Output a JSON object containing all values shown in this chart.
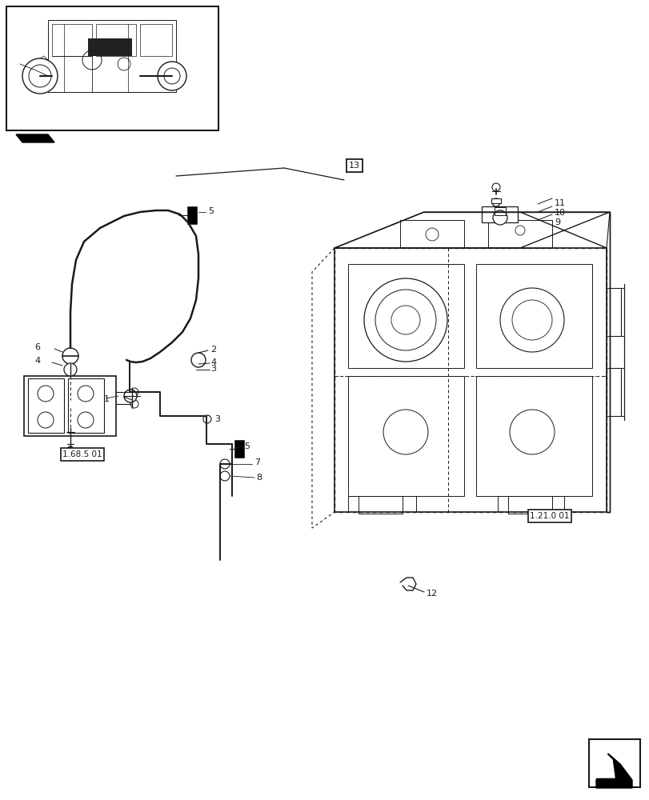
{
  "bg_color": "#ffffff",
  "line_color": "#1a1a1a",
  "fig_width": 8.12,
  "fig_height": 10.0,
  "dpi": 100
}
